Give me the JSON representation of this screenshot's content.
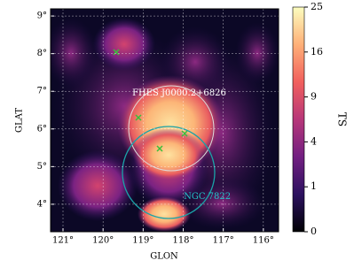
{
  "chart_data": {
    "type": "image",
    "xlabel": "GLON",
    "ylabel": "GLAT",
    "xlim": [
      121.31,
      115.62
    ],
    "ylim": [
      3.27,
      9.19
    ],
    "xticks": [
      {
        "value": 121,
        "label": "121°"
      },
      {
        "value": 120,
        "label": "120°"
      },
      {
        "value": 119,
        "label": "119°"
      },
      {
        "value": 118,
        "label": "118°"
      },
      {
        "value": 117,
        "label": "117°"
      },
      {
        "value": 116,
        "label": "116°"
      }
    ],
    "yticks": [
      {
        "value": 4,
        "label": "4°"
      },
      {
        "value": 5,
        "label": "5°"
      },
      {
        "value": 6,
        "label": "6°"
      },
      {
        "value": 7,
        "label": "7°"
      },
      {
        "value": 8,
        "label": "8°"
      },
      {
        "value": 9,
        "label": "9°"
      }
    ],
    "grid": true,
    "colorbar": {
      "label": "TS",
      "lim": [
        0,
        25
      ],
      "scale": "sqrt",
      "ticks": [
        0,
        1,
        4,
        9,
        16,
        25
      ],
      "colormap": [
        "#000004",
        "#2c115f",
        "#721f81",
        "#b73779",
        "#f1605d",
        "#feb078",
        "#fcfdbf"
      ]
    },
    "annotations": [
      {
        "text": "FHES J0000.2+6826",
        "x": 118.1,
        "y": 6.95
      },
      {
        "text": "NGC 7822",
        "x": 117.4,
        "y": 4.2
      }
    ]
  }
}
